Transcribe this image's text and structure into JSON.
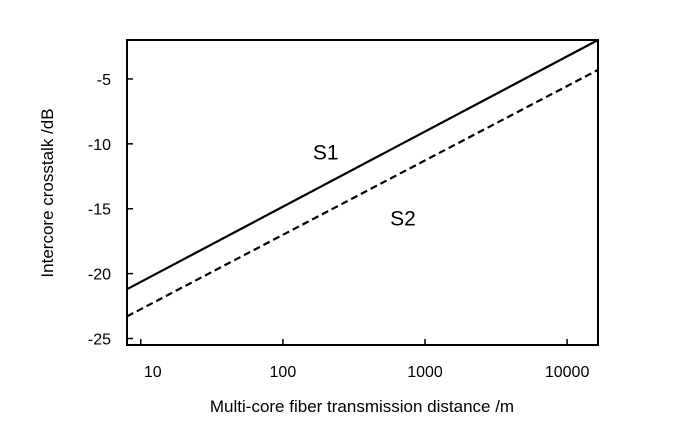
{
  "chart_data": {
    "type": "line",
    "title": "",
    "xlabel": "Multi-core fiber transmission distance /m",
    "ylabel": "Intercore crosstalk /dB",
    "xscale": "log",
    "xlim": [
      8,
      16500
    ],
    "ylim": [
      -25.5,
      -2
    ],
    "xticks": [
      10,
      100,
      1000,
      10000
    ],
    "xtick_labels": [
      "10",
      "100",
      "1000",
      "10000"
    ],
    "yticks": [
      -5,
      -10,
      -15,
      -20,
      -25
    ],
    "ytick_labels": [
      "-5",
      "-10",
      "-15",
      "-20",
      "-25"
    ],
    "grid": false,
    "legend": "none",
    "series": [
      {
        "name": "S1",
        "style": "solid",
        "x": [
          8,
          16500
        ],
        "y": [
          -21.2,
          -2.0
        ]
      },
      {
        "name": "S2",
        "style": "dashed",
        "x": [
          8,
          16500
        ],
        "y": [
          -23.3,
          -4.3
        ]
      }
    ],
    "annotations": [
      {
        "text": "S1",
        "x": 200,
        "y": -11.2
      },
      {
        "text": "S2",
        "x": 700,
        "y": -16.3
      }
    ],
    "colors": {
      "line": "#000000",
      "background": "#ffffff"
    }
  }
}
